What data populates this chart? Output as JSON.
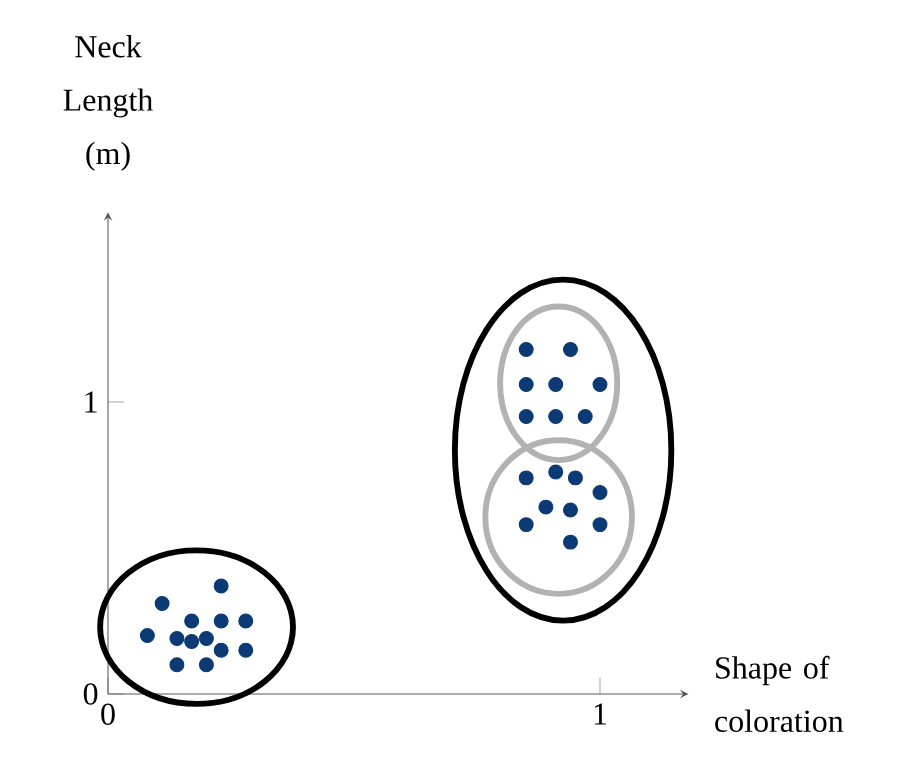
{
  "chart_data": {
    "type": "scatter",
    "xlabel": "Shape of coloration",
    "ylabel": "Neck Length (m)",
    "xlim": [
      0,
      1.18
    ],
    "ylim": [
      0,
      1.65
    ],
    "xticks": [
      0,
      1
    ],
    "yticks": [
      0,
      1
    ],
    "marker": "circle",
    "series": [
      {
        "color": "#0b3a74",
        "x": [
          0.11,
          0.23,
          0.08,
          0.14,
          0.17,
          0.23,
          0.28,
          0.2,
          0.23,
          0.28,
          0.14,
          0.2,
          0.17,
          0.85,
          0.94,
          0.85,
          0.91,
          1.0,
          0.85,
          0.91,
          0.97,
          0.85,
          0.91,
          0.95,
          1.0,
          0.89,
          0.85,
          0.94,
          1.0,
          0.94
        ],
        "values": [
          0.31,
          0.37,
          0.2,
          0.19,
          0.25,
          0.25,
          0.25,
          0.19,
          0.15,
          0.15,
          0.1,
          0.1,
          0.18,
          1.18,
          1.18,
          1.06,
          1.06,
          1.06,
          0.95,
          0.95,
          0.95,
          0.74,
          0.76,
          0.74,
          0.69,
          0.64,
          0.58,
          0.63,
          0.58,
          0.52
        ]
      }
    ]
  }
}
